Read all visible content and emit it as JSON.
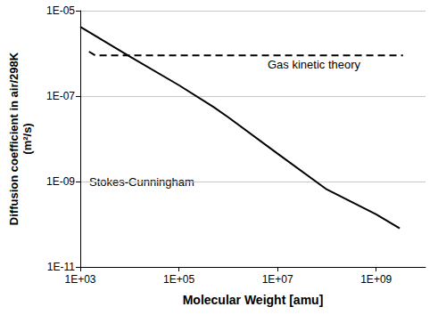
{
  "chart_data": {
    "type": "line",
    "log": true,
    "grid": true,
    "x_label": "Molecular Weight [amu]",
    "y_label": "Diffusion coefficient in air/298K\n(m²/s)",
    "xlim": [
      1000,
      10000000000
    ],
    "ylim": [
      1e-11,
      1e-05
    ],
    "xticks": [
      {
        "value": 1000,
        "label": "1E+03"
      },
      {
        "value": 100000,
        "label": "1E+05"
      },
      {
        "value": 10000000,
        "label": "1E+07"
      },
      {
        "value": 1000000000,
        "label": "1E+09"
      }
    ],
    "yticks": [
      {
        "value": 1e-11,
        "label": "1E-11"
      },
      {
        "value": 1e-09,
        "label": "1E-09"
      },
      {
        "value": 1e-07,
        "label": "1E-07"
      },
      {
        "value": 1e-05,
        "label": "1E-05"
      }
    ],
    "annotations": [
      "Gas kinetic theory",
      "Stokes-Cunningham"
    ],
    "series": [
      {
        "name": "Stokes-Cunningham",
        "color": "#000000",
        "line_style": "solid",
        "x": [
          1000,
          10000,
          100000,
          500000,
          1000000,
          10000000,
          100000000,
          1000000000,
          3000000000
        ],
        "values": [
          4.2e-06,
          8.5e-07,
          1.8e-07,
          5.6e-08,
          3.2e-08,
          4.5e-09,
          6.5e-10,
          1.7e-10,
          8e-11
        ]
      },
      {
        "name": "Gas kinetic theory",
        "color": "#000000",
        "line_style": "dashed",
        "x": [
          1500,
          2000,
          10000,
          100000,
          1000000,
          10000000,
          100000000,
          1000000000,
          3500000000
        ],
        "values": [
          1.1e-06,
          9e-07,
          9e-07,
          9e-07,
          9e-07,
          9e-07,
          9e-07,
          9e-07,
          9e-07
        ]
      }
    ]
  }
}
